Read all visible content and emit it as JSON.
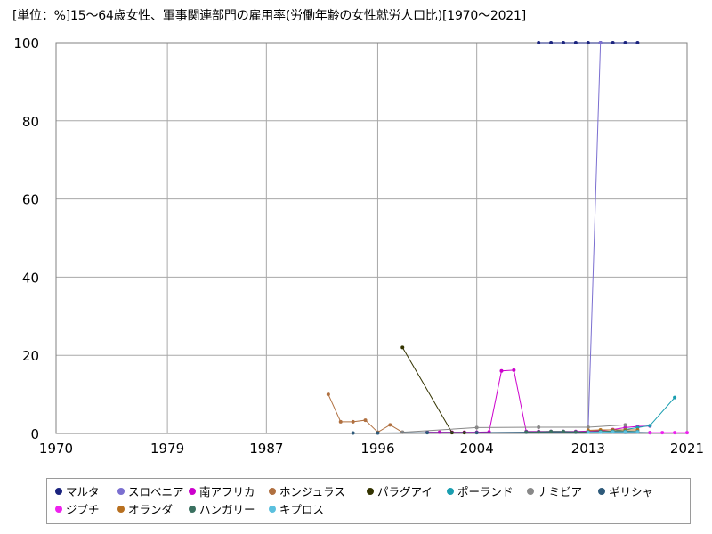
{
  "title": "[単位：%]15～64歳女性、軍事関連部門の雇用率(労働年齢の女性就労人口比)[1970～2021]",
  "chart_data": {
    "type": "line",
    "title": "[単位：%]15～64歳女性、軍事関連部門の雇用率(労働年齢の女性就労人口比)[1970～2021]",
    "xlabel": "",
    "ylabel": "",
    "xlim": [
      1970,
      2021
    ],
    "ylim": [
      0,
      100
    ],
    "x_ticks": [
      1970,
      1979,
      1987,
      1996,
      2004,
      2013,
      2021
    ],
    "y_ticks": [
      0,
      20,
      40,
      60,
      80,
      100
    ],
    "grid": true,
    "legend_position": "bottom",
    "series": [
      {
        "name": "マルタ",
        "color": "#1a237e",
        "points": [
          [
            2009,
            100
          ],
          [
            2010,
            100
          ],
          [
            2011,
            100
          ],
          [
            2012,
            100
          ],
          [
            2013,
            100
          ],
          [
            2014,
            100
          ],
          [
            2015,
            100
          ],
          [
            2016,
            100
          ],
          [
            2017,
            100
          ]
        ]
      },
      {
        "name": "スロベニア",
        "color": "#7b6fd0",
        "points": [
          [
            2013,
            0.5
          ],
          [
            2014,
            100
          ]
        ]
      },
      {
        "name": "南アフリカ",
        "color": "#cc00cc",
        "points": [
          [
            2000,
            0.3
          ],
          [
            2001,
            0.3
          ],
          [
            2002,
            0.3
          ],
          [
            2003,
            0.3
          ],
          [
            2004,
            0.3
          ],
          [
            2005,
            0.4
          ],
          [
            2006,
            16
          ],
          [
            2007,
            16.2
          ],
          [
            2008,
            0.5
          ],
          [
            2009,
            0.5
          ],
          [
            2010,
            0.5
          ],
          [
            2011,
            0.5
          ],
          [
            2012,
            0.5
          ],
          [
            2013,
            0.6
          ],
          [
            2014,
            0.7
          ],
          [
            2015,
            1.0
          ],
          [
            2016,
            1.5
          ],
          [
            2017,
            1.8
          ],
          [
            2018,
            1.9
          ]
        ]
      },
      {
        "name": "ホンジュラス",
        "color": "#b07040",
        "points": [
          [
            1992,
            10
          ],
          [
            1993,
            3
          ],
          [
            1994,
            3
          ],
          [
            1995,
            3.4
          ],
          [
            1996,
            0.3
          ],
          [
            1997,
            2.2
          ],
          [
            1998,
            0.3
          ]
        ]
      },
      {
        "name": "パラグアイ",
        "color": "#333300",
        "points": [
          [
            1998,
            22
          ],
          [
            2002,
            0.2
          ],
          [
            2003,
            0.2
          ]
        ]
      },
      {
        "name": "ポーランド",
        "color": "#1a9eb0",
        "points": [
          [
            2015,
            0.5
          ],
          [
            2016,
            1
          ],
          [
            2017,
            1.5
          ],
          [
            2018,
            2
          ],
          [
            2020,
            9.2
          ]
        ]
      },
      {
        "name": "ナミビア",
        "color": "#888888",
        "points": [
          [
            1998,
            0.3
          ],
          [
            2004,
            1.5
          ],
          [
            2009,
            1.6
          ],
          [
            2013,
            1.6
          ],
          [
            2016,
            2.2
          ]
        ]
      },
      {
        "name": "ギリシャ",
        "color": "#2e5a7a",
        "points": [
          [
            1994,
            0.1
          ],
          [
            1996,
            0.1
          ],
          [
            2000,
            0.2
          ],
          [
            2004,
            0.2
          ],
          [
            2008,
            0.3
          ],
          [
            2012,
            0.3
          ],
          [
            2016,
            0.3
          ],
          [
            2018,
            0.2
          ]
        ]
      },
      {
        "name": "ジブチ",
        "color": "#ee22ee",
        "points": [
          [
            2018,
            0.2
          ],
          [
            2019,
            0.2
          ],
          [
            2020,
            0.2
          ],
          [
            2021,
            0.2
          ]
        ]
      },
      {
        "name": "オランダ",
        "color": "#b87020",
        "points": [
          [
            2013,
            0.8
          ],
          [
            2014,
            0.9
          ],
          [
            2015,
            0.9
          ],
          [
            2016,
            0.9
          ],
          [
            2017,
            0.9
          ]
        ]
      },
      {
        "name": "ハンガリー",
        "color": "#3a7060",
        "points": [
          [
            2008,
            0.4
          ],
          [
            2009,
            0.4
          ],
          [
            2010,
            0.5
          ],
          [
            2011,
            0.5
          ],
          [
            2012,
            0.4
          ],
          [
            2013,
            0.4
          ],
          [
            2014,
            0.5
          ],
          [
            2015,
            0.6
          ],
          [
            2016,
            0.6
          ],
          [
            2017,
            0.5
          ]
        ]
      },
      {
        "name": "キプロス",
        "color": "#5bc0de",
        "points": [
          [
            2013,
            0.3
          ],
          [
            2014,
            0.3
          ],
          [
            2015,
            0.4
          ],
          [
            2016,
            0.4
          ],
          [
            2017,
            0.4
          ]
        ]
      }
    ]
  }
}
